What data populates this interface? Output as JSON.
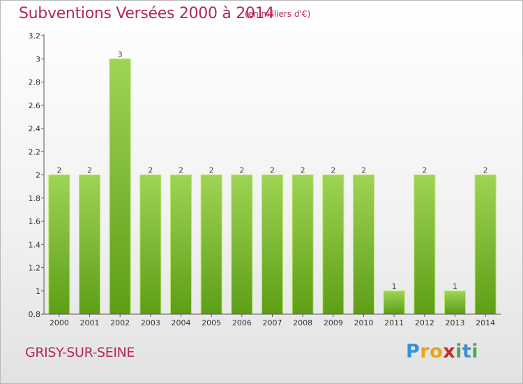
{
  "header": {
    "title": "Subventions Versées 2000 à 2014",
    "unit_note": "(en milliers d'€)"
  },
  "footer": {
    "commune": "GRISY-SUR-SEINE",
    "logo": "Proxiti"
  },
  "colors": {
    "title": "#b5265f",
    "bar_top": "#9ed454",
    "bar_bottom": "#5e9e16",
    "bar_edge": "#b8e86a",
    "axis": "#555555"
  },
  "chart_data": {
    "type": "bar",
    "title": "Subventions Versées 2000 à 2014",
    "subtitle": "(en milliers d'€)",
    "categories": [
      "2000",
      "2001",
      "2002",
      "2003",
      "2004",
      "2005",
      "2006",
      "2007",
      "2008",
      "2009",
      "2010",
      "2011",
      "2012",
      "2013",
      "2014"
    ],
    "values": [
      2,
      2,
      3,
      2,
      2,
      2,
      2,
      2,
      2,
      2,
      2,
      1,
      2,
      1,
      2
    ],
    "data_labels": [
      "2",
      "2",
      "3",
      "2",
      "2",
      "2",
      "2",
      "2",
      "2",
      "2",
      "2",
      "1",
      "2",
      "1",
      "2"
    ],
    "ylim": [
      0.8,
      3.2
    ],
    "yticks": [
      0.8,
      1,
      1.2,
      1.4,
      1.6,
      1.8,
      2,
      2.2,
      2.4,
      2.6,
      2.8,
      3,
      3.2
    ],
    "ytick_labels": [
      "0.8",
      "1",
      "1.2",
      "1.4",
      "1.6",
      "1.8",
      "2",
      "2.2",
      "2.4",
      "2.6",
      "2.8",
      "3",
      "3.2"
    ],
    "grid": false,
    "legend": "none"
  }
}
